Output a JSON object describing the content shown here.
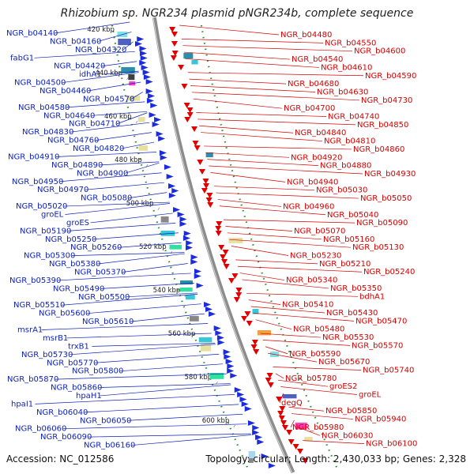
{
  "title": "Rhizobium sp. NGR234 plasmid pNGR234b, complete sequence",
  "footer": {
    "accession": "Accession: NC_012586",
    "summary": "Topology: circular; Length: 2,430,033 bp; Genes: 2,328"
  },
  "colors": {
    "left_labels": "#0a1fb8",
    "right_labels": "#d40000",
    "forward_arrows": "#1a2be0",
    "reverse_arrows": "#e00000",
    "ruler_dots": "#2e8b2e",
    "backbone": "#8c8c8c"
  },
  "scale_ticks": [
    "420 kbp",
    "440 kbp",
    "460 kbp",
    "480 kbp",
    "500 kbp",
    "520 kbp",
    "540 kbp",
    "560 kbp",
    "580 kbp",
    "600 kbp"
  ],
  "left_genes": [
    "NGR_b04140",
    "NGR_b04160",
    "NGR_b04320",
    "fabG1",
    "NGR_b04420",
    "idhA1",
    "NGR_b04500",
    "NGR_b04460",
    "NGR_b04570",
    "NGR_b04580",
    "NGR_b04640",
    "NGR_b04710",
    "NGR_b04830",
    "NGR_b04760",
    "NGR_b04820",
    "NGR_b04910",
    "NGR_b04890",
    "NGR_b04900",
    "NGR_b04950",
    "NGR_b04970",
    "NGR_b05080",
    "NGR_b05020",
    "groEL",
    "groES",
    "NGR_b05190",
    "NGR_b05250",
    "NGR_b05260",
    "NGR_b05300",
    "NGR_b05380",
    "NGR_b05370",
    "NGR_b05390",
    "NGR_b05490",
    "NGR_b05500",
    "NGR_b05510",
    "NGR_b05600",
    "NGR_b05610",
    "msrA1",
    "msrB1",
    "trxB1",
    "NGR_b05730",
    "NGR_b05770",
    "NGR_b05800",
    "NGR_b05870",
    "NGR_b05860",
    "hpaH1",
    "hpaI1",
    "NGR_b06040",
    "NGR_b06050",
    "NGR_b06060",
    "NGR_b06090",
    "NGR_b06160"
  ],
  "right_genes": [
    "NGR_b04480",
    "NGR_b04550",
    "NGR_b04600",
    "NGR_b04540",
    "NGR_b04610",
    "NGR_b04590",
    "NGR_b04680",
    "NGR_b04630",
    "NGR_b04730",
    "NGR_b04700",
    "NGR_b04740",
    "NGR_b04850",
    "NGR_b04840",
    "NGR_b04810",
    "NGR_b04860",
    "NGR_b04920",
    "NGR_b04880",
    "NGR_b04930",
    "NGR_b04940",
    "NGR_b05030",
    "NGR_b05050",
    "NGR_b04960",
    "NGR_b05040",
    "NGR_b05090",
    "NGR_b05070",
    "NGR_b05160",
    "NGR_b05130",
    "NGR_b05230",
    "NGR_b05210",
    "NGR_b05240",
    "NGR_b05340",
    "NGR_b05350",
    "bdhA1",
    "NGR_b05410",
    "NGR_b05430",
    "NGR_b05470",
    "NGR_b05480",
    "NGR_b05530",
    "NGR_b05570",
    "NGR_b05590",
    "NGR_b05670",
    "NGR_b05740",
    "NGR_b05780",
    "groES2",
    "groEL",
    "degQ",
    "NGR_b05850",
    "NGR_b05940",
    "NGR_b05980",
    "NGR_b06030",
    "NGR_b06100"
  ]
}
